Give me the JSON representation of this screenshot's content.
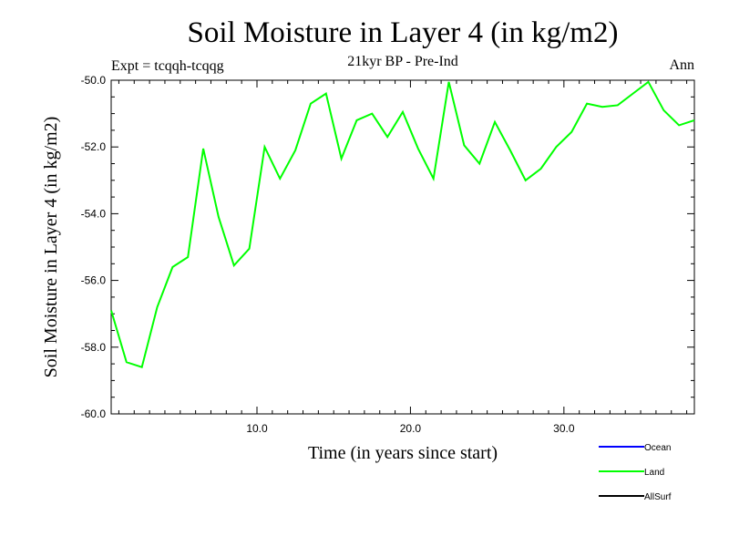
{
  "chart_data": {
    "type": "line",
    "title": "Soil Moisture in Layer 4 (in kg/m2)",
    "subtitle": "21kyr BP - Pre-Ind",
    "experiment_label": "Expt = tcqqh-tcqqg",
    "season_label": "Ann",
    "xlabel": "Time (in years since start)",
    "ylabel": "Soil Moisture in Layer 4 (in kg/m2)",
    "xlim": [
      0.5,
      38.5
    ],
    "ylim": [
      -60.0,
      -50.0
    ],
    "x_ticks": [
      10,
      20,
      30
    ],
    "x_tick_labels": [
      "10.0",
      "20.0",
      "30.0"
    ],
    "y_ticks": [
      -60,
      -58,
      -56,
      -54,
      -52,
      -50
    ],
    "y_tick_labels": [
      "-60.0",
      "-58.0",
      "-56.0",
      "-54.0",
      "-52.0",
      "-50.0"
    ],
    "series": [
      {
        "name": "Ocean",
        "color": "#0000ff",
        "values": []
      },
      {
        "name": "Land",
        "color": "#00ff00",
        "x": [
          0.5,
          1.5,
          2.5,
          3.5,
          4.5,
          5.5,
          6.5,
          7.5,
          8.5,
          9.5,
          10.5,
          11.5,
          12.5,
          13.5,
          14.5,
          15.5,
          16.5,
          17.5,
          18.5,
          19.5,
          20.5,
          21.5,
          22.5,
          23.5,
          24.5,
          25.5,
          26.5,
          27.5,
          28.5,
          29.5,
          30.5,
          31.5,
          32.5,
          33.5,
          34.5,
          35.5,
          36.5,
          37.5,
          38.5
        ],
        "values": [
          -56.9,
          -58.45,
          -58.6,
          -56.8,
          -55.6,
          -55.3,
          -52.05,
          -54.1,
          -55.55,
          -55.05,
          -52.0,
          -52.95,
          -52.1,
          -50.7,
          -50.4,
          -52.35,
          -51.2,
          -51.0,
          -51.7,
          -50.95,
          -52.05,
          -52.95,
          -50.05,
          -51.95,
          -52.5,
          -51.25,
          -52.1,
          -53.0,
          -52.65,
          -52.0,
          -51.55,
          -50.7,
          -50.8,
          -50.75,
          -50.4,
          -50.05,
          -50.9,
          -51.35,
          -51.2
        ]
      },
      {
        "name": "AllSurf",
        "color": "#000000",
        "values": []
      }
    ]
  }
}
